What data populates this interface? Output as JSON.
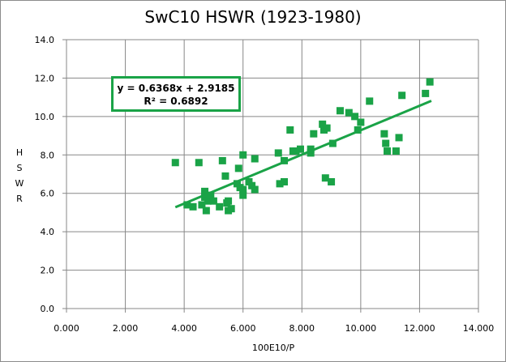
{
  "chart_data": {
    "type": "scatter",
    "title": "SwC10 HSWR (1923-1980)",
    "xlabel": "100E10/P",
    "ylabel": "HSWR",
    "xlim": [
      0,
      14
    ],
    "ylim": [
      0,
      14
    ],
    "x_ticks": [
      "0.000",
      "2.000",
      "4.000",
      "6.000",
      "8.000",
      "10.000",
      "12.000",
      "14.000"
    ],
    "y_ticks": [
      "0.0",
      "2.0",
      "4.0",
      "6.0",
      "8.0",
      "10.0",
      "12.0",
      "14.0"
    ],
    "grid": true,
    "marker_color": "#1aa347",
    "points": [
      [
        3.7,
        7.6
      ],
      [
        4.1,
        5.4
      ],
      [
        4.3,
        5.3
      ],
      [
        4.5,
        7.6
      ],
      [
        4.6,
        5.4
      ],
      [
        4.7,
        6.1
      ],
      [
        4.7,
        5.8
      ],
      [
        4.75,
        5.1
      ],
      [
        4.8,
        5.6
      ],
      [
        4.9,
        5.9
      ],
      [
        5.0,
        5.6
      ],
      [
        5.2,
        5.3
      ],
      [
        5.3,
        7.7
      ],
      [
        5.4,
        6.9
      ],
      [
        5.45,
        5.5
      ],
      [
        5.5,
        5.1
      ],
      [
        5.5,
        5.6
      ],
      [
        5.6,
        5.2
      ],
      [
        5.8,
        6.5
      ],
      [
        5.85,
        7.3
      ],
      [
        5.9,
        6.3
      ],
      [
        6.0,
        8.0
      ],
      [
        6.0,
        6.2
      ],
      [
        6.0,
        5.9
      ],
      [
        6.2,
        6.6
      ],
      [
        6.3,
        6.4
      ],
      [
        6.4,
        6.2
      ],
      [
        6.4,
        7.8
      ],
      [
        7.2,
        8.1
      ],
      [
        7.25,
        6.5
      ],
      [
        7.4,
        6.6
      ],
      [
        7.4,
        7.7
      ],
      [
        7.6,
        9.3
      ],
      [
        7.7,
        8.2
      ],
      [
        7.8,
        8.2
      ],
      [
        7.95,
        8.3
      ],
      [
        8.3,
        8.3
      ],
      [
        8.3,
        8.1
      ],
      [
        8.4,
        9.1
      ],
      [
        8.7,
        9.6
      ],
      [
        8.75,
        9.3
      ],
      [
        8.8,
        6.8
      ],
      [
        8.85,
        9.4
      ],
      [
        9.0,
        6.6
      ],
      [
        9.05,
        8.6
      ],
      [
        9.3,
        10.3
      ],
      [
        9.6,
        10.2
      ],
      [
        9.8,
        10.0
      ],
      [
        9.9,
        9.3
      ],
      [
        10.0,
        9.7
      ],
      [
        10.3,
        10.8
      ],
      [
        10.8,
        9.1
      ],
      [
        10.85,
        8.6
      ],
      [
        10.9,
        8.2
      ],
      [
        11.2,
        8.2
      ],
      [
        11.3,
        8.9
      ],
      [
        11.4,
        11.1
      ],
      [
        12.2,
        11.2
      ],
      [
        12.35,
        11.8
      ]
    ],
    "trendline": {
      "type": "linear",
      "slope": 0.6368,
      "intercept": 2.9185,
      "x_range": [
        3.7,
        12.4
      ],
      "equation_label": "y = 0.6368x + 2.9185",
      "r2_label": "R² = 0.6892",
      "color": "#1aa347"
    }
  }
}
